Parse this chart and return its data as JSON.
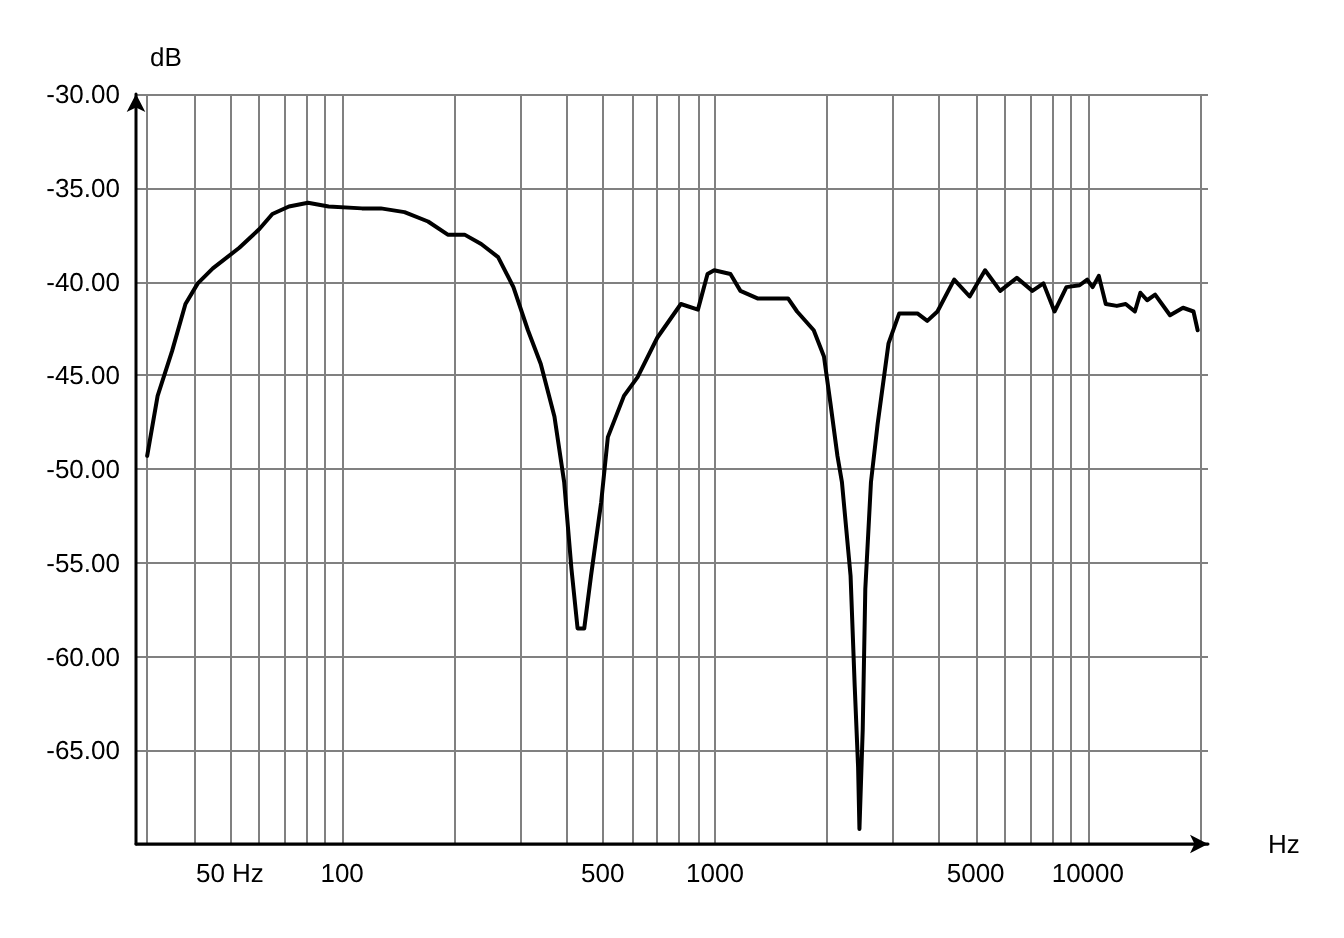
{
  "chart_data": {
    "type": "line",
    "xlabel": "Hz",
    "ylabel": "dB",
    "log": "x",
    "grid": true,
    "marker": "none",
    "line_style": "solid",
    "xlim": [
      28,
      21000
    ],
    "ylim": [
      -70,
      -30
    ],
    "xticks": [
      {
        "value": 30,
        "label": null
      },
      {
        "value": 40,
        "label": null
      },
      {
        "value": 50,
        "label": "50 Hz"
      },
      {
        "value": 60,
        "label": null
      },
      {
        "value": 70,
        "label": null
      },
      {
        "value": 80,
        "label": null
      },
      {
        "value": 90,
        "label": null
      },
      100,
      {
        "value": 200,
        "label": null
      },
      {
        "value": 300,
        "label": null
      },
      {
        "value": 400,
        "label": null
      },
      500,
      {
        "value": 600,
        "label": null
      },
      {
        "value": 700,
        "label": null
      },
      {
        "value": 800,
        "label": null
      },
      {
        "value": 900,
        "label": null
      },
      1000,
      {
        "value": 2000,
        "label": null
      },
      {
        "value": 3000,
        "label": null
      },
      {
        "value": 4000,
        "label": null
      },
      5000,
      {
        "value": 6000,
        "label": null
      },
      {
        "value": 7000,
        "label": null
      },
      {
        "value": 8000,
        "label": null
      },
      {
        "value": 9000,
        "label": null
      },
      10000,
      {
        "value": 20000,
        "label": null
      }
    ],
    "yticks": [
      {
        "value": -70,
        "label": null
      },
      {
        "value": -65,
        "label": "-65.00"
      },
      {
        "value": -60,
        "label": "-60.00"
      },
      {
        "value": -55,
        "label": "-55.00"
      },
      {
        "value": -50,
        "label": "-50.00"
      },
      {
        "value": -45,
        "label": "-45.00"
      },
      {
        "value": -40,
        "label": "-40.00"
      },
      {
        "value": -35,
        "label": "-35.00"
      },
      {
        "value": -30,
        "label": "-30.00"
      }
    ],
    "series": [
      {
        "color": "#000000",
        "x": [
          30,
          32,
          35,
          38,
          41,
          45,
          53,
          60,
          65,
          72,
          81,
          92,
          113,
          127,
          147,
          170,
          192,
          213,
          236,
          262,
          288,
          315,
          341,
          371,
          394,
          412,
          428,
          446,
          465,
          495,
          516,
          570,
          620,
          700,
          810,
          900,
          955,
          995,
          1100,
          1170,
          1300,
          1570,
          1660,
          1840,
          1960,
          2040,
          2130,
          2190,
          2310,
          2370,
          2420,
          2440,
          2490,
          2530,
          2620,
          2730,
          2920,
          3120,
          3280,
          3490,
          3710,
          3950,
          4380,
          4820,
          5300,
          5820,
          6450,
          7100,
          7600,
          8140,
          8760,
          9500,
          9960,
          10300,
          10700,
          11170,
          11960,
          12630,
          13370,
          13830,
          14420,
          15150,
          16610,
          18000,
          19200,
          19700
        ],
        "values": [
          -49.3,
          -46.1,
          -43.7,
          -41.2,
          -40.1,
          -39.3,
          -38.2,
          -37.2,
          -36.4,
          -36.0,
          -35.8,
          -36.0,
          -36.1,
          -36.1,
          -36.3,
          -36.8,
          -37.5,
          -37.5,
          -38.0,
          -38.7,
          -40.3,
          -42.6,
          -44.4,
          -47.2,
          -50.7,
          -55.3,
          -58.5,
          -58.5,
          -55.7,
          -51.8,
          -48.3,
          -46.1,
          -45.1,
          -43.0,
          -41.2,
          -41.5,
          -39.6,
          -39.4,
          -39.6,
          -40.5,
          -40.9,
          -40.9,
          -41.6,
          -42.6,
          -44.0,
          -46.5,
          -49.3,
          -50.7,
          -55.7,
          -61.6,
          -65.9,
          -69.2,
          -63.9,
          -56.4,
          -50.7,
          -47.6,
          -43.3,
          -41.7,
          -41.7,
          -41.7,
          -42.1,
          -41.6,
          -39.9,
          -40.8,
          -39.4,
          -40.5,
          -39.8,
          -40.5,
          -40.1,
          -41.6,
          -40.3,
          -40.2,
          -39.9,
          -40.3,
          -39.7,
          -41.2,
          -41.3,
          -41.2,
          -41.6,
          -40.6,
          -41.0,
          -40.7,
          -41.8,
          -41.4,
          -41.6,
          -42.6
        ]
      }
    ]
  }
}
